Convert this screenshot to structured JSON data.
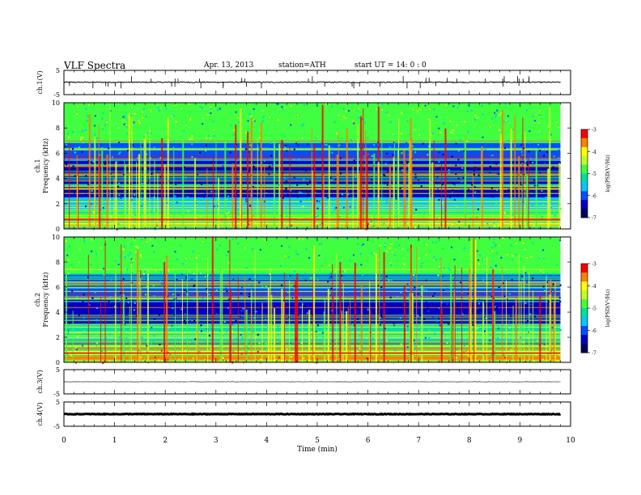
{
  "header": {
    "title": "VLF  Spectra",
    "date": "Apr. 13, 2013",
    "station": "station=ATH",
    "start": "start  UT  =    14: 0   : 0"
  },
  "colors": {
    "plot_bg": "#ffffff",
    "trace": "#000000",
    "spectrogram_scale": [
      "#000060",
      "#0000c8",
      "#0050ff",
      "#00c8ff",
      "#00e0a0",
      "#40ff40",
      "#c0ff20",
      "#ffff00",
      "#ff8000",
      "#ff0000"
    ]
  },
  "chart_data": [
    {
      "type": "line",
      "panel": "ch1-waveform",
      "ylabel": "ch.1(V)",
      "ylim": [
        -5,
        5
      ],
      "yticks": [
        "5",
        "-5"
      ],
      "xlim": [
        0,
        10
      ],
      "description_values": {
        "baseline_V": 0.1,
        "noise_amplitude_V": 0.4,
        "spikes_V": [
          1.5,
          1.8,
          2.5
        ]
      }
    },
    {
      "type": "heatmap",
      "panel": "ch1-spectrogram",
      "ylabel_top": "ch.1",
      "ylabel": "Frequency  (kHz)",
      "ylim": [
        0,
        10
      ],
      "yticks": [
        "0",
        "2",
        "4",
        "6",
        "8",
        "10"
      ],
      "xlim": [
        0,
        9.8
      ],
      "colorbar": {
        "label": "log(PSD(V²/Hz)",
        "range": [
          -7,
          -3
        ],
        "ticks": [
          "-3",
          "-4",
          "-5",
          "-6",
          "-7"
        ]
      },
      "bands_logPSD": [
        {
          "f": [
            0,
            0.5
          ],
          "v": -4.2
        },
        {
          "f": [
            0.5,
            1.5
          ],
          "v": -4.8
        },
        {
          "f": [
            1.5,
            2.5
          ],
          "v": -5.6
        },
        {
          "f": [
            2.5,
            3.5
          ],
          "v": -6.3
        },
        {
          "f": [
            3.5,
            5.5
          ],
          "v": -6.6
        },
        {
          "f": [
            5.5,
            7
          ],
          "v": -5.9
        },
        {
          "f": [
            7,
            10
          ],
          "v": -4.9
        }
      ]
    },
    {
      "type": "heatmap",
      "panel": "ch2-spectrogram",
      "ylabel_top": "ch.2",
      "ylabel": "Frequency  (kHz)",
      "ylim": [
        0,
        10
      ],
      "yticks": [
        "0",
        "2",
        "4",
        "6",
        "8",
        "10"
      ],
      "xlim": [
        0,
        9.8
      ],
      "colorbar": {
        "label": "log(PSD(V²/Hz)",
        "range": [
          -7,
          -3
        ],
        "ticks": [
          "-3",
          "-4",
          "-5",
          "-6",
          "-7"
        ]
      },
      "bands_logPSD": [
        {
          "f": [
            0,
            0.5
          ],
          "v": -3.6
        },
        {
          "f": [
            0.5,
            1
          ],
          "v": -4.2
        },
        {
          "f": [
            1,
            3
          ],
          "v": -5.3
        },
        {
          "f": [
            3,
            5
          ],
          "v": -6.4
        },
        {
          "f": [
            5,
            7
          ],
          "v": -5.9
        },
        {
          "f": [
            7,
            10
          ],
          "v": -4.9
        }
      ]
    },
    {
      "type": "line",
      "panel": "ch3-waveform",
      "ylabel": "ch.3(V)",
      "ylim": [
        -5,
        5
      ],
      "yticks": [
        "5",
        "-5"
      ],
      "xlim": [
        0,
        9.8
      ],
      "description_values": {
        "baseline_V": 0
      }
    },
    {
      "type": "line",
      "panel": "ch4-waveform",
      "ylabel": "ch.4(V)",
      "ylim": [
        -5,
        5
      ],
      "yticks": [
        "5",
        "-5"
      ],
      "xlim": [
        0,
        9.8
      ],
      "description_values": {
        "baseline_V": 0
      }
    }
  ],
  "xaxis": {
    "label": "Time  (min)",
    "range": [
      0,
      10
    ],
    "ticks": [
      "0",
      "1",
      "2",
      "3",
      "4",
      "5",
      "6",
      "7",
      "8",
      "9",
      "10"
    ]
  }
}
